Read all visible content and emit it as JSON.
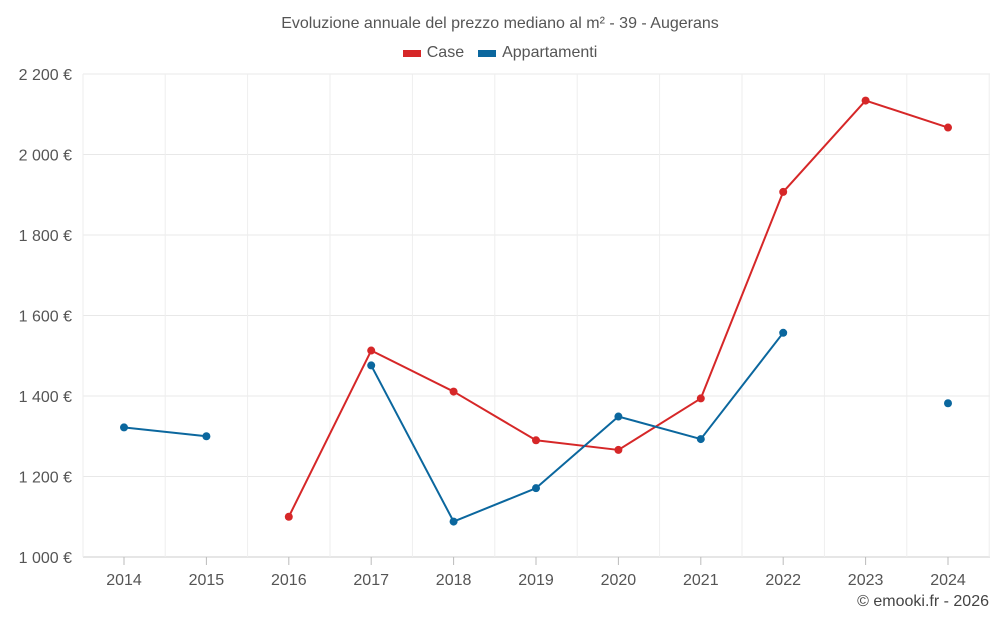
{
  "chart_data": {
    "type": "line",
    "title": "Evoluzione annuale del prezzo mediano al m² - 39 - Augerans",
    "categories": [
      "2014",
      "2015",
      "2016",
      "2017",
      "2018",
      "2019",
      "2020",
      "2021",
      "2022",
      "2023",
      "2024"
    ],
    "ylim": [
      1000,
      2200
    ],
    "yticks": [
      1000,
      1200,
      1400,
      1600,
      1800,
      2000,
      2200
    ],
    "ytick_labels": [
      "1 000 €",
      "1 200 €",
      "1 400 €",
      "1 600 €",
      "1 800 €",
      "2 000 €",
      "2 200 €"
    ],
    "grid": true,
    "legend_position": "top-center",
    "series": [
      {
        "name": "Case",
        "color": "#d62728",
        "values": [
          null,
          null,
          1100,
          1513,
          1411,
          1290,
          1266,
          1394,
          1907,
          2134,
          2067
        ]
      },
      {
        "name": "Appartamenti",
        "color": "#0b679e",
        "values": [
          1322,
          1300,
          null,
          1476,
          1088,
          1171,
          1349,
          1293,
          1557,
          null,
          1382
        ]
      }
    ]
  },
  "credit": "© emooki.fr - 2026"
}
